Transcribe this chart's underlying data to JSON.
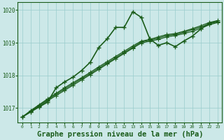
{
  "background_color": "#cce8e8",
  "grid_color": "#99cccc",
  "line_color": "#1a5c1a",
  "title": "Graphe pression niveau de la mer (hPa)",
  "title_fontsize": 7.5,
  "xlim": [
    -0.5,
    23.5
  ],
  "ylim": [
    1016.55,
    1020.25
  ],
  "yticks": [
    1017,
    1018,
    1019,
    1020
  ],
  "xticks": [
    0,
    1,
    2,
    3,
    4,
    5,
    6,
    7,
    8,
    9,
    10,
    11,
    12,
    13,
    14,
    15,
    16,
    17,
    18,
    19,
    20,
    21,
    22,
    23
  ],
  "series_peaked": [
    1016.72,
    1016.88,
    1017.03,
    1017.18,
    1017.62,
    1017.8,
    1017.95,
    1018.15,
    1018.4,
    1018.85,
    1019.12,
    1019.47,
    1019.47,
    1019.95,
    1019.78,
    1019.12,
    1018.92,
    1019.0,
    1018.88,
    1019.05,
    1019.2,
    1019.42,
    1019.6,
    1019.65
  ],
  "series_linear1": [
    1016.72,
    1016.88,
    1017.05,
    1017.22,
    1017.38,
    1017.54,
    1017.7,
    1017.86,
    1018.02,
    1018.18,
    1018.35,
    1018.51,
    1018.67,
    1018.83,
    1018.99,
    1019.05,
    1019.1,
    1019.18,
    1019.22,
    1019.28,
    1019.35,
    1019.44,
    1019.55,
    1019.62
  ],
  "series_linear2": [
    1016.72,
    1016.9,
    1017.08,
    1017.25,
    1017.42,
    1017.58,
    1017.74,
    1017.9,
    1018.05,
    1018.22,
    1018.38,
    1018.54,
    1018.7,
    1018.86,
    1019.02,
    1019.08,
    1019.14,
    1019.22,
    1019.25,
    1019.32,
    1019.4,
    1019.48,
    1019.58,
    1019.65
  ],
  "series_linear3": [
    1016.72,
    1016.92,
    1017.1,
    1017.28,
    1017.45,
    1017.62,
    1017.78,
    1017.93,
    1018.09,
    1018.26,
    1018.42,
    1018.58,
    1018.74,
    1018.9,
    1019.05,
    1019.1,
    1019.18,
    1019.25,
    1019.28,
    1019.35,
    1019.43,
    1019.52,
    1019.62,
    1019.68
  ],
  "marker": "+",
  "marker_size": 4,
  "linewidth_peaked": 1.2,
  "linewidth_linear": 0.9
}
